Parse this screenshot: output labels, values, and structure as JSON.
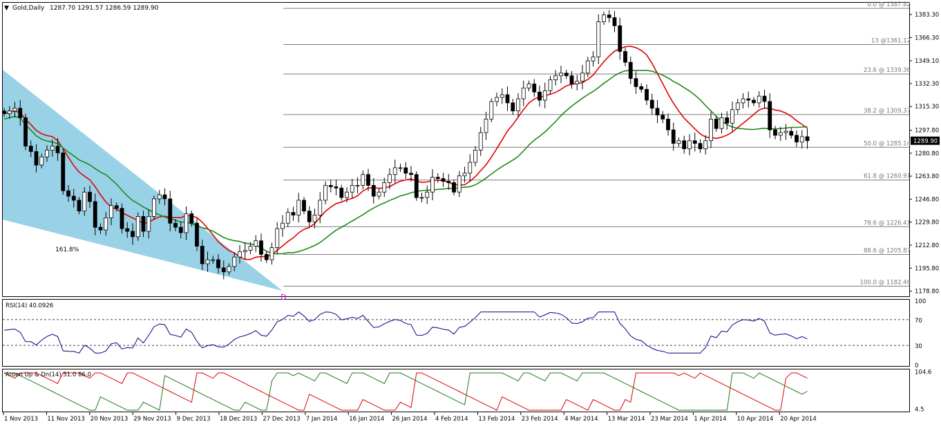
{
  "header": {
    "symbol_label": "Gold,Daily",
    "ohlc_label": "1287.70 1291.57 1286.59 1289.90",
    "menu_glyph": "▼"
  },
  "main_panel": {
    "price_ticks": [
      "1383.30",
      "1366.30",
      "1349.10",
      "1332.30",
      "1315.30",
      "1297.80",
      "1280.80",
      "1263.80",
      "1246.80",
      "1229.80",
      "1212.80",
      "1195.80",
      "1178.80"
    ],
    "current_price": "1289.90",
    "fib_levels": [
      {
        "label": "0.0 @ 1387.82",
        "price": 1387.82
      },
      {
        "label": "13 @1361.12",
        "price": 1361.12
      },
      {
        "label": "23.6 @ 1339.36",
        "price": 1339.36
      },
      {
        "label": "38.2 @ 1309.37",
        "price": 1309.37
      },
      {
        "label": "50.0 @ 1285.14",
        "price": 1285.14
      },
      {
        "label": "61.8 @ 1260.91",
        "price": 1260.91
      },
      {
        "label": "78.6 @ 1226.41",
        "price": 1226.41
      },
      {
        "label": "88.6 @ 1205.87",
        "price": 1205.87
      },
      {
        "label": "100.0 @ 1182.46",
        "price": 1182.46
      }
    ],
    "fan_label": "161.8%",
    "pattern_marker": "D",
    "colors": {
      "ma_red": "#e00000",
      "ma_green": "#1a8a1a",
      "highlight": "#e6e600",
      "fan": "#8ecde4"
    }
  },
  "rsi_panel": {
    "label": "RSI(14) 40.0926",
    "ticks": [
      "100",
      "70",
      "30",
      "0"
    ],
    "levels": [
      70,
      30
    ],
    "color": "#000080"
  },
  "aroon_panel": {
    "label": "Aroon Up & Dn(14) 51.0 86.0",
    "ticks": [
      "104.6",
      "4.5"
    ],
    "colors": {
      "up": "#1a7a1a",
      "down": "#e00000"
    }
  },
  "x_axis": {
    "date_labels": [
      "1 Nov 2013",
      "11 Nov 2013",
      "20 Nov 2013",
      "29 Nov 2013",
      "9 Dec 2013",
      "18 Dec 2013",
      "27 Dec 2013",
      "7 Jan 2014",
      "16 Jan 2014",
      "26 Jan 2014",
      "4 Feb 2014",
      "13 Feb 2014",
      "23 Feb 2014",
      "4 Mar 2014",
      "13 Mar 2014",
      "23 Mar 2014",
      "1 Apr 2014",
      "10 Apr 2014",
      "20 Apr 2014"
    ]
  },
  "chart_data": {
    "type": "candlestick",
    "title": "Gold,Daily",
    "ylim": [
      1175,
      1392
    ],
    "close_series": [
      1310,
      1312,
      1314,
      1307,
      1286,
      1282,
      1272,
      1278,
      1283,
      1286,
      1281,
      1253,
      1249,
      1246,
      1238,
      1252,
      1245,
      1226,
      1224,
      1233,
      1242,
      1240,
      1225,
      1223,
      1219,
      1234,
      1223,
      1234,
      1247,
      1250,
      1247,
      1229,
      1226,
      1222,
      1236,
      1229,
      1212,
      1199,
      1202,
      1202,
      1196,
      1193,
      1197,
      1204,
      1208,
      1209,
      1212,
      1216,
      1206,
      1202,
      1211,
      1225,
      1229,
      1237,
      1235,
      1246,
      1238,
      1230,
      1235,
      1246,
      1257,
      1256,
      1255,
      1248,
      1252,
      1257,
      1257,
      1265,
      1257,
      1249,
      1252,
      1259,
      1265,
      1270,
      1270,
      1266,
      1265,
      1248,
      1248,
      1252,
      1263,
      1262,
      1260,
      1259,
      1252,
      1264,
      1266,
      1274,
      1283,
      1296,
      1306,
      1319,
      1322,
      1324,
      1318,
      1312,
      1321,
      1329,
      1332,
      1326,
      1320,
      1327,
      1335,
      1338,
      1340,
      1338,
      1332,
      1334,
      1340,
      1349,
      1352,
      1378,
      1383,
      1381,
      1375,
      1356,
      1348,
      1336,
      1330,
      1328,
      1320,
      1314,
      1309,
      1306,
      1298,
      1288,
      1290,
      1284,
      1290,
      1288,
      1284,
      1290,
      1306,
      1299,
      1307,
      1303,
      1313,
      1318,
      1321,
      1320,
      1318,
      1323,
      1319,
      1298,
      1294,
      1296,
      1297,
      1294,
      1289,
      1293,
      1290
    ],
    "rsi_last": 40.0926,
    "aroon_up_last": 51.0,
    "aroon_down_last": 86.0
  }
}
